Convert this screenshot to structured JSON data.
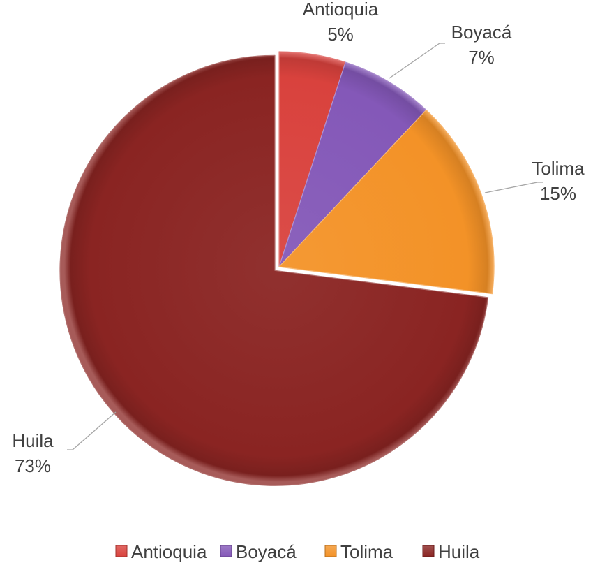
{
  "chart_data": {
    "type": "pie",
    "title": "",
    "categories": [
      "Antioquia",
      "Boyacá",
      "Tolima",
      "Huila"
    ],
    "values": [
      5,
      7,
      15,
      73
    ],
    "data_labels": [
      "5%",
      "7%",
      "15%",
      "73%"
    ],
    "colors": [
      "#D9423D",
      "#8458B8",
      "#F39227",
      "#8A2422"
    ],
    "legend_position": "bottom",
    "start_angle": "12 o'clock, clockwise",
    "exploded_slice": "Huila"
  }
}
